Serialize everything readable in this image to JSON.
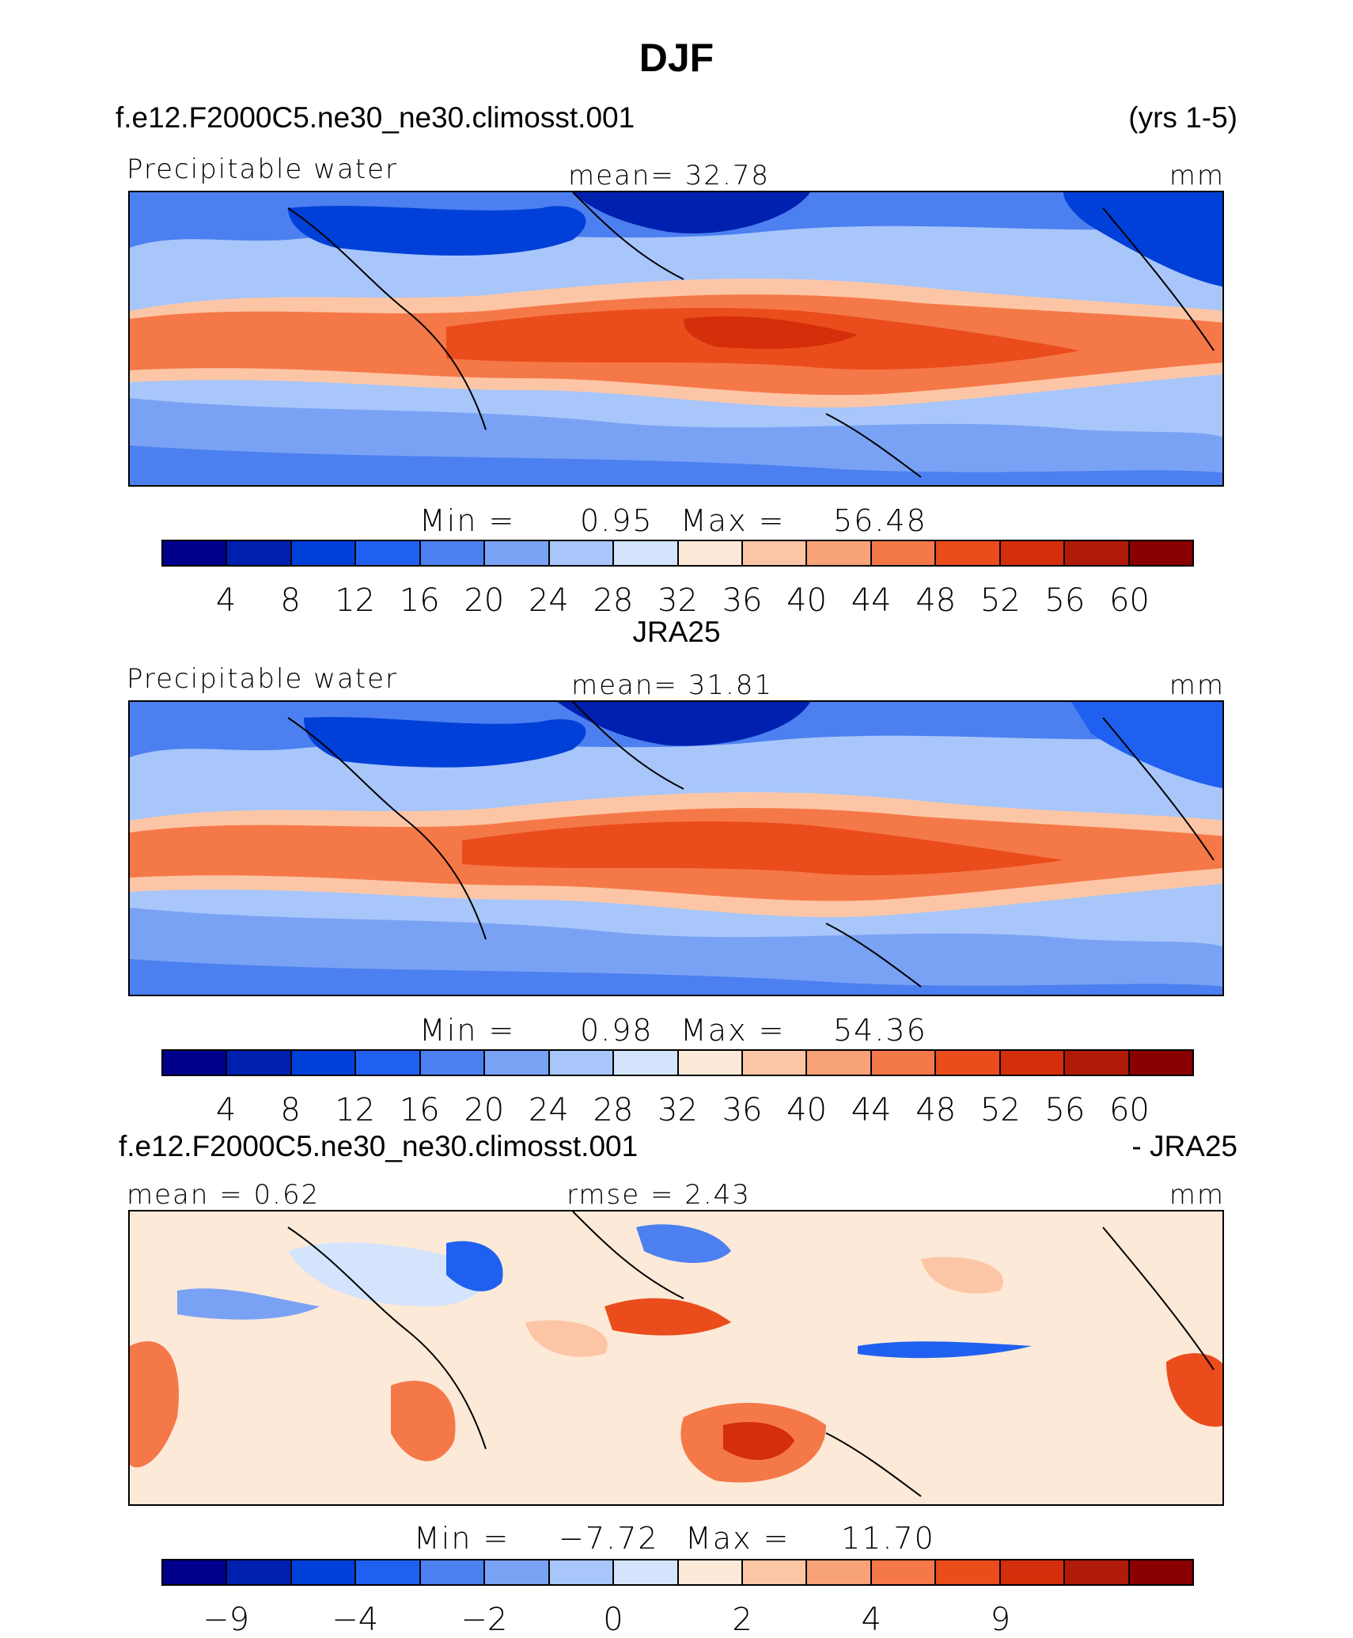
{
  "title": "DJF",
  "case_name": "f.e12.F2000C5.ne30_ne30.climosst.001",
  "years": "(yrs 1-5)",
  "obs_title": "JRA25",
  "diff_case": "f.e12.F2000C5.ne30_ne30.climosst.001",
  "diff_obs": "- JRA25",
  "colors": [
    "#00008c",
    "#0020b0",
    "#0040d8",
    "#2060f0",
    "#4c80f0",
    "#7aa2f4",
    "#a8c6fa",
    "#d4e4fc",
    "#fde9d8",
    "#fcc6a6",
    "#f8a278",
    "#f57848",
    "#ea4c1c",
    "#d42e0a",
    "#b01a08",
    "#880000"
  ],
  "panels": [
    {
      "label": "Precipitable water",
      "stat_text": "mean=   32.78",
      "units": "mm",
      "min_label": "Min  =",
      "min_value": "0.95",
      "max_label": "Max  =",
      "max_value": "56.48",
      "ticks": [
        "4",
        "8",
        "12",
        "16",
        "20",
        "24",
        "28",
        "32",
        "36",
        "40",
        "44",
        "48",
        "52",
        "56",
        "60"
      ]
    },
    {
      "label": "Precipitable water",
      "stat_text": "mean=   31.81",
      "units": "mm",
      "min_label": "Min  =",
      "min_value": "0.98",
      "max_label": "Max  =",
      "max_value": "54.36",
      "ticks": [
        "4",
        "8",
        "12",
        "16",
        "20",
        "24",
        "28",
        "32",
        "36",
        "40",
        "44",
        "48",
        "52",
        "56",
        "60"
      ]
    },
    {
      "mean_text": "mean =    0.62",
      "rmse_text": "rmse =     2.43",
      "units": "mm",
      "min_label": "Min  =",
      "min_value": "−7.72",
      "max_label": "Max  =",
      "max_value": "11.70",
      "ticks": [
        "−9",
        "−4",
        "−2",
        "0",
        "2",
        "4",
        "9"
      ]
    }
  ]
}
